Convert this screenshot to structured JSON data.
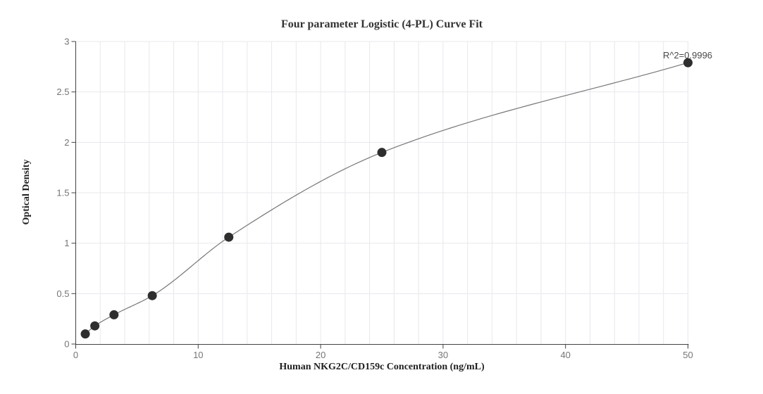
{
  "chart": {
    "title": "Four parameter Logistic (4-PL) Curve Fit",
    "xlabel": "Human NKG2C/CD159c Concentration (ng/mL)",
    "ylabel": "Optical Density",
    "annotation": "R^2=0.9996"
  },
  "chart_data": {
    "type": "scatter",
    "title": "Four parameter Logistic (4-PL) Curve Fit",
    "xlabel": "Human NKG2C/CD159c Concentration (ng/mL)",
    "ylabel": "Optical Density",
    "annotation": "R^2=0.9996",
    "x": [
      0.78,
      1.56,
      3.125,
      6.25,
      12.5,
      25,
      50
    ],
    "y": [
      0.1,
      0.18,
      0.29,
      0.48,
      1.06,
      1.9,
      2.79
    ],
    "fit_curve": "4PL smooth curve through points",
    "xlim": [
      0,
      50
    ],
    "ylim": [
      0,
      3
    ],
    "x_major_ticks": [
      0,
      10,
      20,
      30,
      40,
      50
    ],
    "x_grid_step": 2,
    "y_ticks": [
      0,
      0.5,
      1,
      1.5,
      2,
      2.5,
      3
    ],
    "grid": true,
    "legend": "none",
    "colors": {
      "point": "#2e2e2e",
      "curve": "#777777",
      "grid": "#e8e8ee",
      "axis": "#424242",
      "tick_label": "#757575",
      "title": "#333333",
      "annotation": "#4a4a4a",
      "background": "#ffffff"
    }
  }
}
